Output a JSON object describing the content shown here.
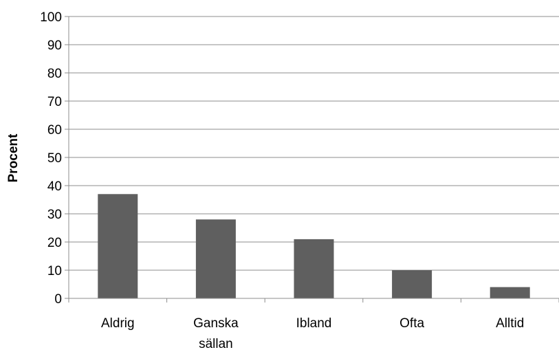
{
  "chart_data": {
    "type": "bar",
    "title": "",
    "xlabel": "",
    "ylabel": "Procent",
    "ylim": [
      0,
      100
    ],
    "yticks": [
      0,
      10,
      20,
      30,
      40,
      50,
      60,
      70,
      80,
      90,
      100
    ],
    "grid": true,
    "legend": "none",
    "categories": [
      [
        "Aldrig"
      ],
      [
        "Ganska",
        "sällan"
      ],
      [
        "Ibland"
      ],
      [
        "Ofta"
      ],
      [
        "Alltid"
      ]
    ],
    "values": [
      37,
      28,
      21,
      10,
      4
    ],
    "bar_color": "#5f5f5f",
    "grid_color": "#8c8c8c"
  }
}
